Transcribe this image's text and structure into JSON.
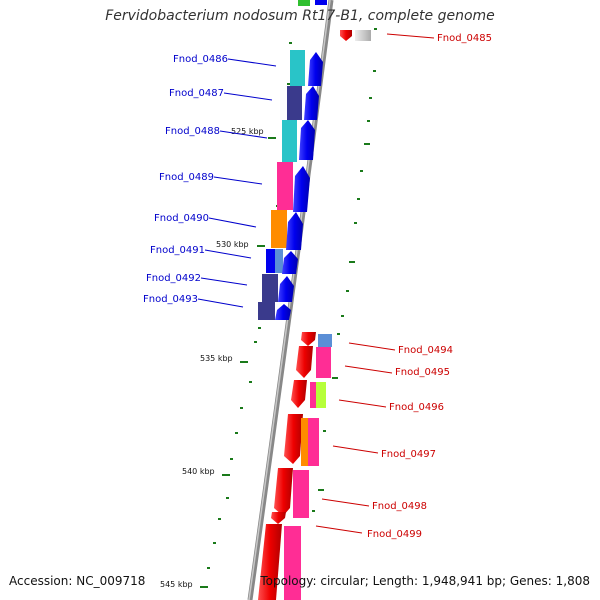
{
  "title": "Fervidobacterium nodosum Rt17-B1, complete genome",
  "footer": {
    "accession": "Accession: NC_009718",
    "topology": "Topology: circular; Length: 1,948,941 bp; Genes: 1,808"
  },
  "colors": {
    "forward_label": "#0000cc",
    "reverse_label": "#cc0000",
    "tick": "#1a7a1a",
    "backbone": "#888888"
  },
  "ticks": [
    {
      "label": "525 kbp"
    },
    {
      "label": "530 kbp"
    },
    {
      "label": "535 kbp"
    },
    {
      "label": "540 kbp"
    },
    {
      "label": "545 kbp"
    }
  ],
  "forward_genes": [
    {
      "name": "Fnod_0486",
      "cog_color": "#29c4c8"
    },
    {
      "name": "Fnod_0487",
      "cog_color": "#3a3a8c"
    },
    {
      "name": "Fnod_0488",
      "cog_color": "#29c4c8"
    },
    {
      "name": "Fnod_0489",
      "cog_color": "#ff2d95"
    },
    {
      "name": "Fnod_0490",
      "cog_color": "#ff8c00"
    },
    {
      "name": "Fnod_0491",
      "cog_color": "#0000ee"
    },
    {
      "name": "Fnod_0492",
      "cog_color": "#3a3a8c"
    },
    {
      "name": "Fnod_0493",
      "cog_color": "#3a3a8c"
    }
  ],
  "reverse_genes": [
    {
      "name": "Fnod_0485",
      "cog_color": "#cccccc"
    },
    {
      "name": "Fnod_0494",
      "cog_color": "#5b8fd6"
    },
    {
      "name": "Fnod_0495",
      "cog_color": "#ff2d95"
    },
    {
      "name": "Fnod_0496",
      "cog_color": "#b6ff3a"
    },
    {
      "name": "Fnod_0497",
      "cog_color": "#ff8c00"
    },
    {
      "name": "Fnod_0498",
      "cog_color": "#ff2d95"
    },
    {
      "name": "Fnod_0499",
      "cog_color": "#ff2d95"
    }
  ]
}
